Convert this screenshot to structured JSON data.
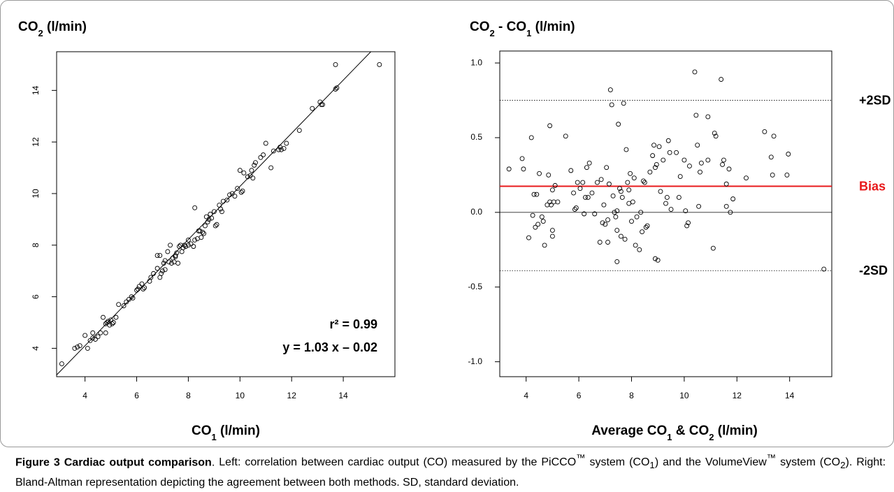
{
  "figure": {
    "label": "Figure 3",
    "title": "Cardiac output comparison",
    "caption_html": "Left: correlation between cardiac output (CO) measured by the PiCCO<sup>™</sup> system (CO<sub>1</sub>) and the VolumeView<sup>™</sup> system (CO<sub>2</sub>). Right: Bland-Altman representation depicting the agreement between both methods. SD, standard deviation."
  },
  "chart_data": [
    {
      "type": "scatter",
      "ylabel_html": "CO<tspan baseline-shift='sub' font-size='13'>2</tspan> (l/min)",
      "xlabel_html": "CO<tspan baseline-shift='sub' font-size='13'>1</tspan> (l/min)",
      "xlim": [
        2.9,
        16.0
      ],
      "ylim": [
        2.9,
        15.5
      ],
      "xticks": [
        4,
        6,
        8,
        10,
        12,
        14
      ],
      "yticks": [
        4,
        6,
        8,
        10,
        12,
        14
      ],
      "regression": {
        "slope": 1.03,
        "intercept": -0.02
      },
      "annotation_r2": "r² = 0.99",
      "annotation_eq": "y = 1.03 x – 0.02",
      "points": [
        [
          3.1,
          3.4
        ],
        [
          3.6,
          4.0
        ],
        [
          3.7,
          4.05
        ],
        [
          3.8,
          4.1
        ],
        [
          4.0,
          4.5
        ],
        [
          4.1,
          4.0
        ],
        [
          4.2,
          4.3
        ],
        [
          4.3,
          4.4
        ],
        [
          4.3,
          4.6
        ],
        [
          4.4,
          4.35
        ],
        [
          4.5,
          4.45
        ],
        [
          4.6,
          4.6
        ],
        [
          4.7,
          5.2
        ],
        [
          4.8,
          4.6
        ],
        [
          4.8,
          4.95
        ],
        [
          4.85,
          5.0
        ],
        [
          4.9,
          5.05
        ],
        [
          4.95,
          4.9
        ],
        [
          5.0,
          5.1
        ],
        [
          5.05,
          4.95
        ],
        [
          5.1,
          5.0
        ],
        [
          5.2,
          5.2
        ],
        [
          5.3,
          5.7
        ],
        [
          5.5,
          5.65
        ],
        [
          5.6,
          5.8
        ],
        [
          5.7,
          5.9
        ],
        [
          5.8,
          6.0
        ],
        [
          5.85,
          5.95
        ],
        [
          6.0,
          6.25
        ],
        [
          6.05,
          6.3
        ],
        [
          6.1,
          6.4
        ],
        [
          6.2,
          6.5
        ],
        [
          6.25,
          6.3
        ],
        [
          6.3,
          6.35
        ],
        [
          6.5,
          6.6
        ],
        [
          6.55,
          6.75
        ],
        [
          6.65,
          6.9
        ],
        [
          6.8,
          7.1
        ],
        [
          6.8,
          7.6
        ],
        [
          6.9,
          7.6
        ],
        [
          6.9,
          6.75
        ],
        [
          6.95,
          6.9
        ],
        [
          7.0,
          7.0
        ],
        [
          7.05,
          7.3
        ],
        [
          7.1,
          7.05
        ],
        [
          7.1,
          7.4
        ],
        [
          7.2,
          7.75
        ],
        [
          7.25,
          7.35
        ],
        [
          7.3,
          8.0
        ],
        [
          7.35,
          7.3
        ],
        [
          7.4,
          7.5
        ],
        [
          7.45,
          7.35
        ],
        [
          7.5,
          7.55
        ],
        [
          7.5,
          7.6
        ],
        [
          7.55,
          7.7
        ],
        [
          7.6,
          7.3
        ],
        [
          7.65,
          7.95
        ],
        [
          7.7,
          8.0
        ],
        [
          7.75,
          7.75
        ],
        [
          7.8,
          7.9
        ],
        [
          7.85,
          8.0
        ],
        [
          7.9,
          7.95
        ],
        [
          8.0,
          8.0
        ],
        [
          8.0,
          8.2
        ],
        [
          8.1,
          8.05
        ],
        [
          8.2,
          7.95
        ],
        [
          8.25,
          8.2
        ],
        [
          8.25,
          9.45
        ],
        [
          8.35,
          8.25
        ],
        [
          8.4,
          8.55
        ],
        [
          8.45,
          8.55
        ],
        [
          8.5,
          8.3
        ],
        [
          8.55,
          8.5
        ],
        [
          8.6,
          8.45
        ],
        [
          8.65,
          8.75
        ],
        [
          8.7,
          9.1
        ],
        [
          8.75,
          8.9
        ],
        [
          8.8,
          9.0
        ],
        [
          8.85,
          9.2
        ],
        [
          8.9,
          9.05
        ],
        [
          9.0,
          9.3
        ],
        [
          9.05,
          8.75
        ],
        [
          9.1,
          8.8
        ],
        [
          9.2,
          9.55
        ],
        [
          9.25,
          9.4
        ],
        [
          9.3,
          9.3
        ],
        [
          9.35,
          9.7
        ],
        [
          9.5,
          9.75
        ],
        [
          9.6,
          9.95
        ],
        [
          9.7,
          10.0
        ],
        [
          9.8,
          9.9
        ],
        [
          9.9,
          10.2
        ],
        [
          10.0,
          10.9
        ],
        [
          10.05,
          10.05
        ],
        [
          10.1,
          10.1
        ],
        [
          10.15,
          10.8
        ],
        [
          10.3,
          10.65
        ],
        [
          10.4,
          10.7
        ],
        [
          10.45,
          10.9
        ],
        [
          10.5,
          10.6
        ],
        [
          10.55,
          11.1
        ],
        [
          10.6,
          11.2
        ],
        [
          10.8,
          11.4
        ],
        [
          10.9,
          11.5
        ],
        [
          11.0,
          11.95
        ],
        [
          11.2,
          11.0
        ],
        [
          11.3,
          11.65
        ],
        [
          11.5,
          11.7
        ],
        [
          11.55,
          11.8
        ],
        [
          11.6,
          11.7
        ],
        [
          11.7,
          11.75
        ],
        [
          11.8,
          11.95
        ],
        [
          12.3,
          12.45
        ],
        [
          12.8,
          13.3
        ],
        [
          13.1,
          13.55
        ],
        [
          13.15,
          13.45
        ],
        [
          13.2,
          13.45
        ],
        [
          13.7,
          14.05
        ],
        [
          13.75,
          14.1
        ],
        [
          13.7,
          15.0
        ],
        [
          15.4,
          15.0
        ]
      ]
    },
    {
      "type": "scatter",
      "ylabel_html": "CO<tspan baseline-shift='sub' font-size='13'>2</tspan> - CO<tspan baseline-shift='sub' font-size='13'>1</tspan> (l/min)",
      "xlabel_html": "Average CO<tspan baseline-shift='sub' font-size='13'>1</tspan> &amp; CO<tspan baseline-shift='sub' font-size='13'>2</tspan> (l/min)",
      "xlim": [
        3.0,
        15.6
      ],
      "ylim": [
        -1.1,
        1.08
      ],
      "xticks": [
        4,
        6,
        8,
        10,
        12,
        14
      ],
      "yticks": [
        -1.0,
        -0.5,
        0.0,
        0.5,
        1.0
      ],
      "ytick_labels": [
        "-1.0",
        "-0.5",
        "0.0",
        "0.5",
        "1.0"
      ],
      "bias": 0.175,
      "plus_2sd": 0.75,
      "minus_2sd": -0.39,
      "bias_color": "#e8191b",
      "label_plus2sd": "+2SD",
      "label_bias": "Bias",
      "label_minus2sd": "-2SD",
      "points": [
        [
          3.35,
          0.29
        ],
        [
          3.85,
          0.36
        ],
        [
          3.9,
          0.29
        ],
        [
          4.1,
          -0.17
        ],
        [
          4.2,
          0.5
        ],
        [
          4.25,
          -0.02
        ],
        [
          4.3,
          0.12
        ],
        [
          4.35,
          -0.1
        ],
        [
          4.4,
          0.12
        ],
        [
          4.45,
          -0.08
        ],
        [
          4.5,
          0.26
        ],
        [
          4.6,
          -0.03
        ],
        [
          4.65,
          -0.06
        ],
        [
          4.7,
          -0.22
        ],
        [
          4.8,
          0.05
        ],
        [
          4.85,
          0.25
        ],
        [
          4.9,
          0.07
        ],
        [
          4.9,
          0.58
        ],
        [
          4.95,
          0.05
        ],
        [
          5.0,
          -0.16
        ],
        [
          5.0,
          -0.12
        ],
        [
          5.0,
          0.15
        ],
        [
          5.05,
          0.07
        ],
        [
          5.1,
          0.18
        ],
        [
          5.2,
          0.07
        ],
        [
          5.5,
          0.51
        ],
        [
          5.7,
          0.28
        ],
        [
          5.8,
          0.13
        ],
        [
          5.85,
          0.02
        ],
        [
          5.9,
          0.03
        ],
        [
          5.95,
          0.2
        ],
        [
          6.05,
          0.16
        ],
        [
          6.15,
          0.2
        ],
        [
          6.2,
          -0.01
        ],
        [
          6.25,
          0.1
        ],
        [
          6.3,
          0.3
        ],
        [
          6.35,
          0.1
        ],
        [
          6.4,
          0.33
        ],
        [
          6.5,
          0.13
        ],
        [
          6.6,
          -0.01
        ],
        [
          6.7,
          0.2
        ],
        [
          6.8,
          -0.2
        ],
        [
          6.85,
          0.22
        ],
        [
          6.9,
          -0.07
        ],
        [
          6.95,
          0.05
        ],
        [
          7.0,
          -0.08
        ],
        [
          7.05,
          0.3
        ],
        [
          7.1,
          -0.05
        ],
        [
          7.1,
          -0.2
        ],
        [
          7.15,
          0.19
        ],
        [
          7.2,
          0.82
        ],
        [
          7.25,
          0.72
        ],
        [
          7.3,
          0.11
        ],
        [
          7.35,
          0.0
        ],
        [
          7.4,
          -0.03
        ],
        [
          7.45,
          0.01
        ],
        [
          7.45,
          -0.12
        ],
        [
          7.45,
          -0.33
        ],
        [
          7.5,
          0.59
        ],
        [
          7.55,
          0.16
        ],
        [
          7.6,
          0.14
        ],
        [
          7.6,
          -0.16
        ],
        [
          7.65,
          0.1
        ],
        [
          7.7,
          0.73
        ],
        [
          7.75,
          -0.18
        ],
        [
          7.8,
          0.42
        ],
        [
          7.85,
          0.2
        ],
        [
          7.9,
          0.06
        ],
        [
          7.9,
          0.15
        ],
        [
          7.95,
          0.26
        ],
        [
          8.0,
          -0.06
        ],
        [
          8.05,
          0.07
        ],
        [
          8.1,
          0.23
        ],
        [
          8.15,
          -0.22
        ],
        [
          8.2,
          -0.03
        ],
        [
          8.3,
          -0.25
        ],
        [
          8.35,
          0.0
        ],
        [
          8.4,
          -0.13
        ],
        [
          8.45,
          0.21
        ],
        [
          8.5,
          0.2
        ],
        [
          8.55,
          -0.1
        ],
        [
          8.6,
          -0.09
        ],
        [
          8.7,
          0.27
        ],
        [
          8.8,
          0.38
        ],
        [
          8.85,
          0.45
        ],
        [
          8.9,
          0.3
        ],
        [
          8.9,
          -0.31
        ],
        [
          8.95,
          0.32
        ],
        [
          9.0,
          -0.32
        ],
        [
          9.05,
          0.44
        ],
        [
          9.1,
          0.14
        ],
        [
          9.2,
          0.35
        ],
        [
          9.3,
          0.06
        ],
        [
          9.35,
          0.1
        ],
        [
          9.4,
          0.48
        ],
        [
          9.45,
          0.4
        ],
        [
          9.5,
          0.02
        ],
        [
          9.7,
          0.4
        ],
        [
          9.8,
          0.1
        ],
        [
          9.85,
          0.24
        ],
        [
          10.0,
          0.35
        ],
        [
          10.05,
          0.01
        ],
        [
          10.1,
          -0.09
        ],
        [
          10.15,
          -0.07
        ],
        [
          10.2,
          0.31
        ],
        [
          10.4,
          0.94
        ],
        [
          10.45,
          0.65
        ],
        [
          10.5,
          0.45
        ],
        [
          10.55,
          0.04
        ],
        [
          10.6,
          0.27
        ],
        [
          10.65,
          0.33
        ],
        [
          10.9,
          0.35
        ],
        [
          10.9,
          0.64
        ],
        [
          11.1,
          -0.24
        ],
        [
          11.15,
          0.53
        ],
        [
          11.2,
          0.51
        ],
        [
          11.4,
          0.89
        ],
        [
          11.45,
          0.32
        ],
        [
          11.5,
          0.35
        ],
        [
          11.6,
          0.19
        ],
        [
          11.6,
          0.04
        ],
        [
          11.7,
          0.29
        ],
        [
          11.75,
          0.0
        ],
        [
          11.85,
          0.09
        ],
        [
          12.35,
          0.23
        ],
        [
          13.05,
          0.54
        ],
        [
          13.3,
          0.37
        ],
        [
          13.35,
          0.25
        ],
        [
          13.4,
          0.51
        ],
        [
          13.9,
          0.25
        ],
        [
          13.95,
          0.39
        ],
        [
          15.3,
          -0.38
        ]
      ]
    }
  ]
}
